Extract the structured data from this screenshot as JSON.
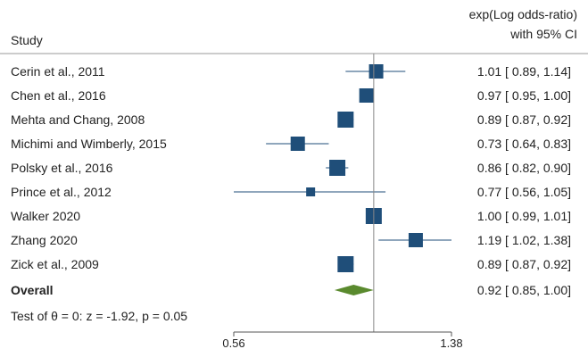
{
  "chart_data": {
    "type": "forest",
    "header": {
      "study": "Study",
      "effect_line1": "exp(Log odds-ratio)",
      "effect_line2": "with 95% CI"
    },
    "xscale": "log",
    "xlim": [
      0.56,
      1.38
    ],
    "xticks": [
      "0.56",
      "1.38"
    ],
    "reference_line": 1.0,
    "colors": {
      "marker": "#1f4e79",
      "ci": "#1f4e79",
      "diamond": "#5a8a2e",
      "reference": "#888888",
      "text": "#222222"
    },
    "studies": [
      {
        "label": "Cerin et al., 2011",
        "est": 1.01,
        "lo": 0.89,
        "hi": 1.14,
        "text": "1.01 [ 0.89,  1.14]"
      },
      {
        "label": "Chen et al., 2016",
        "est": 0.97,
        "lo": 0.95,
        "hi": 1.0,
        "text": "0.97 [ 0.95,  1.00]"
      },
      {
        "label": "Mehta and Chang, 2008",
        "est": 0.89,
        "lo": 0.87,
        "hi": 0.92,
        "text": "0.89 [ 0.87,  0.92]"
      },
      {
        "label": "Michimi and Wimberly, 2015",
        "est": 0.73,
        "lo": 0.64,
        "hi": 0.83,
        "text": "0.73 [ 0.64,  0.83]"
      },
      {
        "label": "Polsky et al., 2016",
        "est": 0.86,
        "lo": 0.82,
        "hi": 0.9,
        "text": "0.86 [ 0.82,  0.90]"
      },
      {
        "label": "Prince et al., 2012",
        "est": 0.77,
        "lo": 0.56,
        "hi": 1.05,
        "text": "0.77 [ 0.56,  1.05]"
      },
      {
        "label": "Walker 2020",
        "est": 1.0,
        "lo": 0.99,
        "hi": 1.01,
        "text": "1.00 [ 0.99,  1.01]"
      },
      {
        "label": "Zhang 2020",
        "est": 1.19,
        "lo": 1.02,
        "hi": 1.38,
        "text": "1.19 [ 1.02,  1.38]"
      },
      {
        "label": "Zick et al., 2009",
        "est": 0.89,
        "lo": 0.87,
        "hi": 0.92,
        "text": "0.89 [ 0.87,  0.92]"
      }
    ],
    "overall": {
      "label": "Overall",
      "est": 0.92,
      "lo": 0.85,
      "hi": 1.0,
      "text": "0.92 [ 0.85,  1.00]"
    },
    "test_text": "Test of θ = 0: z = -1.92, p = 0.05"
  }
}
